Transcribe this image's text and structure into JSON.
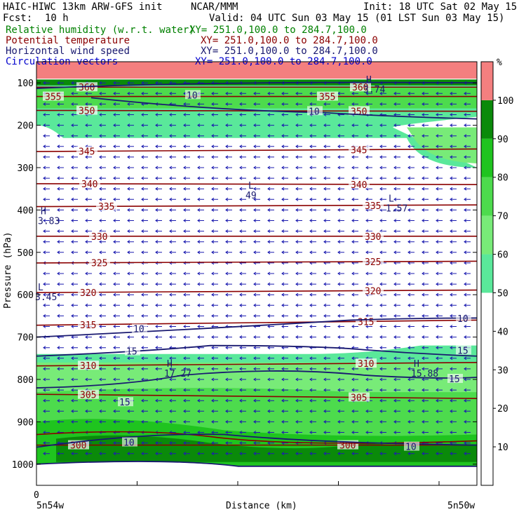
{
  "header": {
    "model": "HAIC-HIWC 13km ARW-GFS init",
    "org": "NCAR/MMM",
    "init": "Init: 18 UTC Sat 02 May 15",
    "fcst_label": "Fcst:",
    "fcst_value": "10 h",
    "valid": "Valid: 04 UTC Sun 03 May 15 (01 LST Sun 03 May 15)"
  },
  "fields": [
    {
      "name": "Relative humidity (w.r.t. water)",
      "xy": "XY= 251.0,100.0 to 284.7,100.0",
      "color": "#008000"
    },
    {
      "name": "Potential temperature",
      "xy": "XY= 251.0,100.0 to 284.7,100.0",
      "color": "#8b0000"
    },
    {
      "name": "Horizontal wind speed",
      "xy": "XY= 251.0,100.0 to 284.7,100.0",
      "color": "#191970"
    },
    {
      "name": "Circulation vectors",
      "xy": "XY= 251.0,100.0 to 284.7,100.0",
      "color": "#0000cd"
    }
  ],
  "chart_data": {
    "type": "heatmap",
    "ylabel": "Pressure (hPa)",
    "xlabel": "Distance (km)",
    "x_tick_label": "0",
    "x_start_label": "5n54w",
    "x_end_label": "5n50w",
    "y_ticks": [
      100,
      200,
      300,
      400,
      500,
      600,
      700,
      800,
      900,
      1000
    ],
    "ylim": [
      1050,
      50
    ],
    "colorbar": {
      "unit": "%",
      "ticks": [
        10,
        20,
        30,
        40,
        50,
        60,
        70,
        80,
        90,
        100
      ],
      "levels": [
        {
          "min": 0,
          "max": 50,
          "color": "#ffffff"
        },
        {
          "min": 50,
          "max": 60,
          "color": "#5ae89a"
        },
        {
          "min": 60,
          "max": 70,
          "color": "#78eb78"
        },
        {
          "min": 70,
          "max": 80,
          "color": "#4ddb4d"
        },
        {
          "min": 80,
          "max": 90,
          "color": "#1fc41f"
        },
        {
          "min": 90,
          "max": 100,
          "color": "#0a8a0a"
        },
        {
          "min": 100,
          "max": 110,
          "color": "#f47f7f"
        }
      ]
    },
    "theta_labels": [
      "355",
      "360",
      "350",
      "345",
      "340",
      "335",
      "330",
      "325",
      "320",
      "315",
      "310",
      "305",
      "300"
    ],
    "speed_labels": [
      "10",
      "15"
    ],
    "extrema": [
      {
        "type": "H",
        "value": "3.83"
      },
      {
        "type": "L",
        "value": "3.45"
      },
      {
        "type": "L",
        "value": "49"
      },
      {
        "type": "L",
        "value": "1.57"
      },
      {
        "type": "H",
        "value": "17.27"
      },
      {
        "type": "H",
        "value": "15.88"
      },
      {
        "type": "H",
        "value": "3.74"
      }
    ]
  }
}
